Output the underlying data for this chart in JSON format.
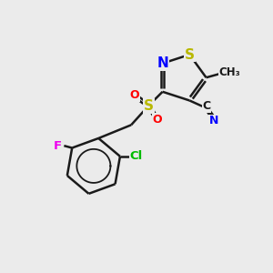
{
  "background_color": "#ebebeb",
  "bond_color": "#1a1a1a",
  "bond_width": 1.8,
  "atom_colors": {
    "S": "#b8b800",
    "N": "#0000ff",
    "O": "#ff0000",
    "Cl": "#00bb00",
    "F": "#ee00ee",
    "C": "#1a1a1a"
  },
  "figsize": [
    3.0,
    3.0
  ],
  "dpi": 100
}
